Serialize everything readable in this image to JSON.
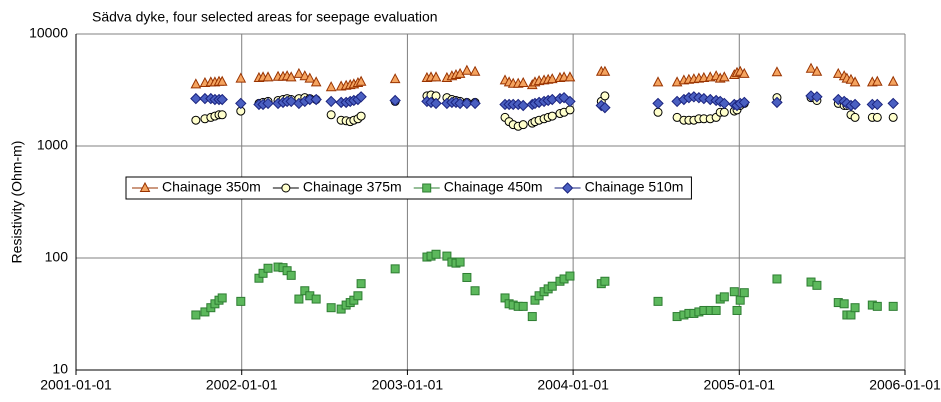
{
  "chart_data": {
    "type": "scatter",
    "title": "Sädva dyke, four selected areas for seepage evaluation",
    "ylabel": "Resistivity (Ohm-m)",
    "x": [
      "2001-09-22",
      "2001-10-12",
      "2001-10-25",
      "2001-11-03",
      "2001-11-12",
      "2001-11-19",
      "2001-12-30",
      "2002-02-08",
      "2002-02-17",
      "2002-02-28",
      "2002-03-22",
      "2002-04-02",
      "2002-04-11",
      "2002-04-20",
      "2002-05-07",
      "2002-05-20",
      "2002-05-31",
      "2002-06-14",
      "2002-07-17",
      "2002-08-08",
      "2002-08-19",
      "2002-08-28",
      "2002-09-05",
      "2002-09-14",
      "2002-09-21",
      "2002-12-05",
      "2003-02-13",
      "2003-02-22",
      "2003-03-05",
      "2003-03-29",
      "2003-04-09",
      "2003-04-18",
      "2003-04-27",
      "2003-05-12",
      "2003-05-30",
      "2003-08-04",
      "2003-08-13",
      "2003-08-22",
      "2003-09-02",
      "2003-09-13",
      "2003-10-03",
      "2003-10-09",
      "2003-10-18",
      "2003-10-29",
      "2003-11-07",
      "2003-11-16",
      "2003-12-03",
      "2003-12-12",
      "2003-12-25",
      "2004-03-03",
      "2004-03-11",
      "2004-07-06",
      "2004-08-17",
      "2004-09-01",
      "2004-09-12",
      "2004-09-23",
      "2004-10-04",
      "2004-10-15",
      "2004-10-29",
      "2004-11-11",
      "2004-11-20",
      "2004-11-29",
      "2004-12-21",
      "2004-12-27",
      "2005-01-03",
      "2005-01-12",
      "2005-03-25",
      "2005-06-08",
      "2005-06-21",
      "2005-08-07",
      "2005-08-20",
      "2005-08-26",
      "2005-09-04",
      "2005-09-13",
      "2005-10-21",
      "2005-11-01",
      "2005-12-06"
    ],
    "series": [
      {
        "name": "Chainage 350m",
        "color": "#f4a460",
        "edge_color": "#993300",
        "marker": "triangle",
        "values": [
          3550,
          3650,
          3700,
          3700,
          3750,
          3750,
          4000,
          4050,
          4100,
          4100,
          4150,
          4150,
          4200,
          4100,
          4400,
          4200,
          4000,
          3700,
          3350,
          3400,
          3450,
          3500,
          3550,
          3650,
          3750,
          3950,
          4050,
          4100,
          4100,
          4050,
          4200,
          4300,
          4400,
          4700,
          4600,
          3850,
          3700,
          3600,
          3600,
          3650,
          3500,
          3700,
          3800,
          3850,
          3900,
          3950,
          4050,
          4100,
          4100,
          4600,
          4600,
          3700,
          3700,
          3850,
          3900,
          3950,
          4000,
          4050,
          4100,
          4200,
          4000,
          4100,
          4300,
          4500,
          4600,
          4400,
          4550,
          4900,
          4600,
          4400,
          4200,
          4000,
          3900,
          3700,
          3700,
          3750,
          3750
        ]
      },
      {
        "name": "Chainage 375m",
        "color": "#ffffcc",
        "edge_color": "#000000",
        "marker": "circle",
        "values": [
          1700,
          1750,
          1800,
          1850,
          1900,
          1900,
          2050,
          2400,
          2450,
          2500,
          2550,
          2600,
          2650,
          2600,
          2650,
          2700,
          2650,
          2600,
          1900,
          1700,
          1680,
          1650,
          1700,
          1750,
          1850,
          2500,
          2800,
          2850,
          2800,
          2700,
          2600,
          2550,
          2500,
          2450,
          2450,
          1800,
          1650,
          1550,
          1500,
          1550,
          1600,
          1650,
          1700,
          1750,
          1800,
          1850,
          1950,
          2000,
          2100,
          2500,
          2800,
          2000,
          1800,
          1700,
          1700,
          1700,
          1750,
          1750,
          1750,
          1800,
          2000,
          2000,
          2050,
          2100,
          2300,
          2400,
          2700,
          2700,
          2550,
          2400,
          2300,
          2300,
          1900,
          1800,
          1800,
          1800,
          1800
        ]
      },
      {
        "name": "Chainage 450m",
        "color": "#5cb85c",
        "edge_color": "#2e7d32",
        "marker": "square",
        "values": [
          31,
          33,
          36,
          39,
          42,
          44,
          41,
          66,
          73,
          81,
          83,
          82,
          77,
          70,
          43,
          51,
          46,
          43,
          36,
          35,
          38,
          40,
          42,
          46,
          59,
          80,
          102,
          104,
          108,
          104,
          92,
          90,
          92,
          67,
          51,
          44,
          39,
          38,
          37,
          37,
          30,
          42,
          46,
          50,
          53,
          56,
          62,
          65,
          69,
          59,
          62,
          41,
          30,
          31,
          32,
          32,
          33,
          34,
          34,
          34,
          43,
          45,
          50,
          34,
          42,
          49,
          65,
          61,
          57,
          40,
          39,
          31,
          31,
          36,
          38,
          37,
          37
        ]
      },
      {
        "name": "Chainage 510m",
        "color": "#4a5fc1",
        "edge_color": "#1a237e",
        "marker": "diamond",
        "values": [
          2650,
          2650,
          2650,
          2600,
          2600,
          2600,
          2400,
          2350,
          2350,
          2400,
          2400,
          2450,
          2500,
          2500,
          2400,
          2500,
          2600,
          2600,
          2500,
          2450,
          2450,
          2500,
          2550,
          2600,
          2750,
          2550,
          2500,
          2450,
          2400,
          2400,
          2450,
          2450,
          2400,
          2400,
          2400,
          2350,
          2350,
          2350,
          2350,
          2300,
          2350,
          2400,
          2450,
          2500,
          2550,
          2600,
          2650,
          2700,
          2500,
          2300,
          2200,
          2400,
          2500,
          2600,
          2700,
          2750,
          2700,
          2650,
          2600,
          2550,
          2500,
          2400,
          2350,
          2300,
          2400,
          2450,
          2450,
          2800,
          2750,
          2600,
          2500,
          2400,
          2300,
          2350,
          2350,
          2350,
          2400
        ]
      }
    ],
    "xlim": [
      "2001-01-01",
      "2006-01-01"
    ],
    "xticks": [
      "2001-01-01",
      "2002-01-01",
      "2003-01-01",
      "2004-01-01",
      "2005-01-01",
      "2006-01-01"
    ],
    "ylim": [
      10,
      10000
    ],
    "yticks": [
      10,
      100,
      1000,
      10000
    ],
    "log_y": true,
    "grid": true,
    "legend": "center-left"
  }
}
